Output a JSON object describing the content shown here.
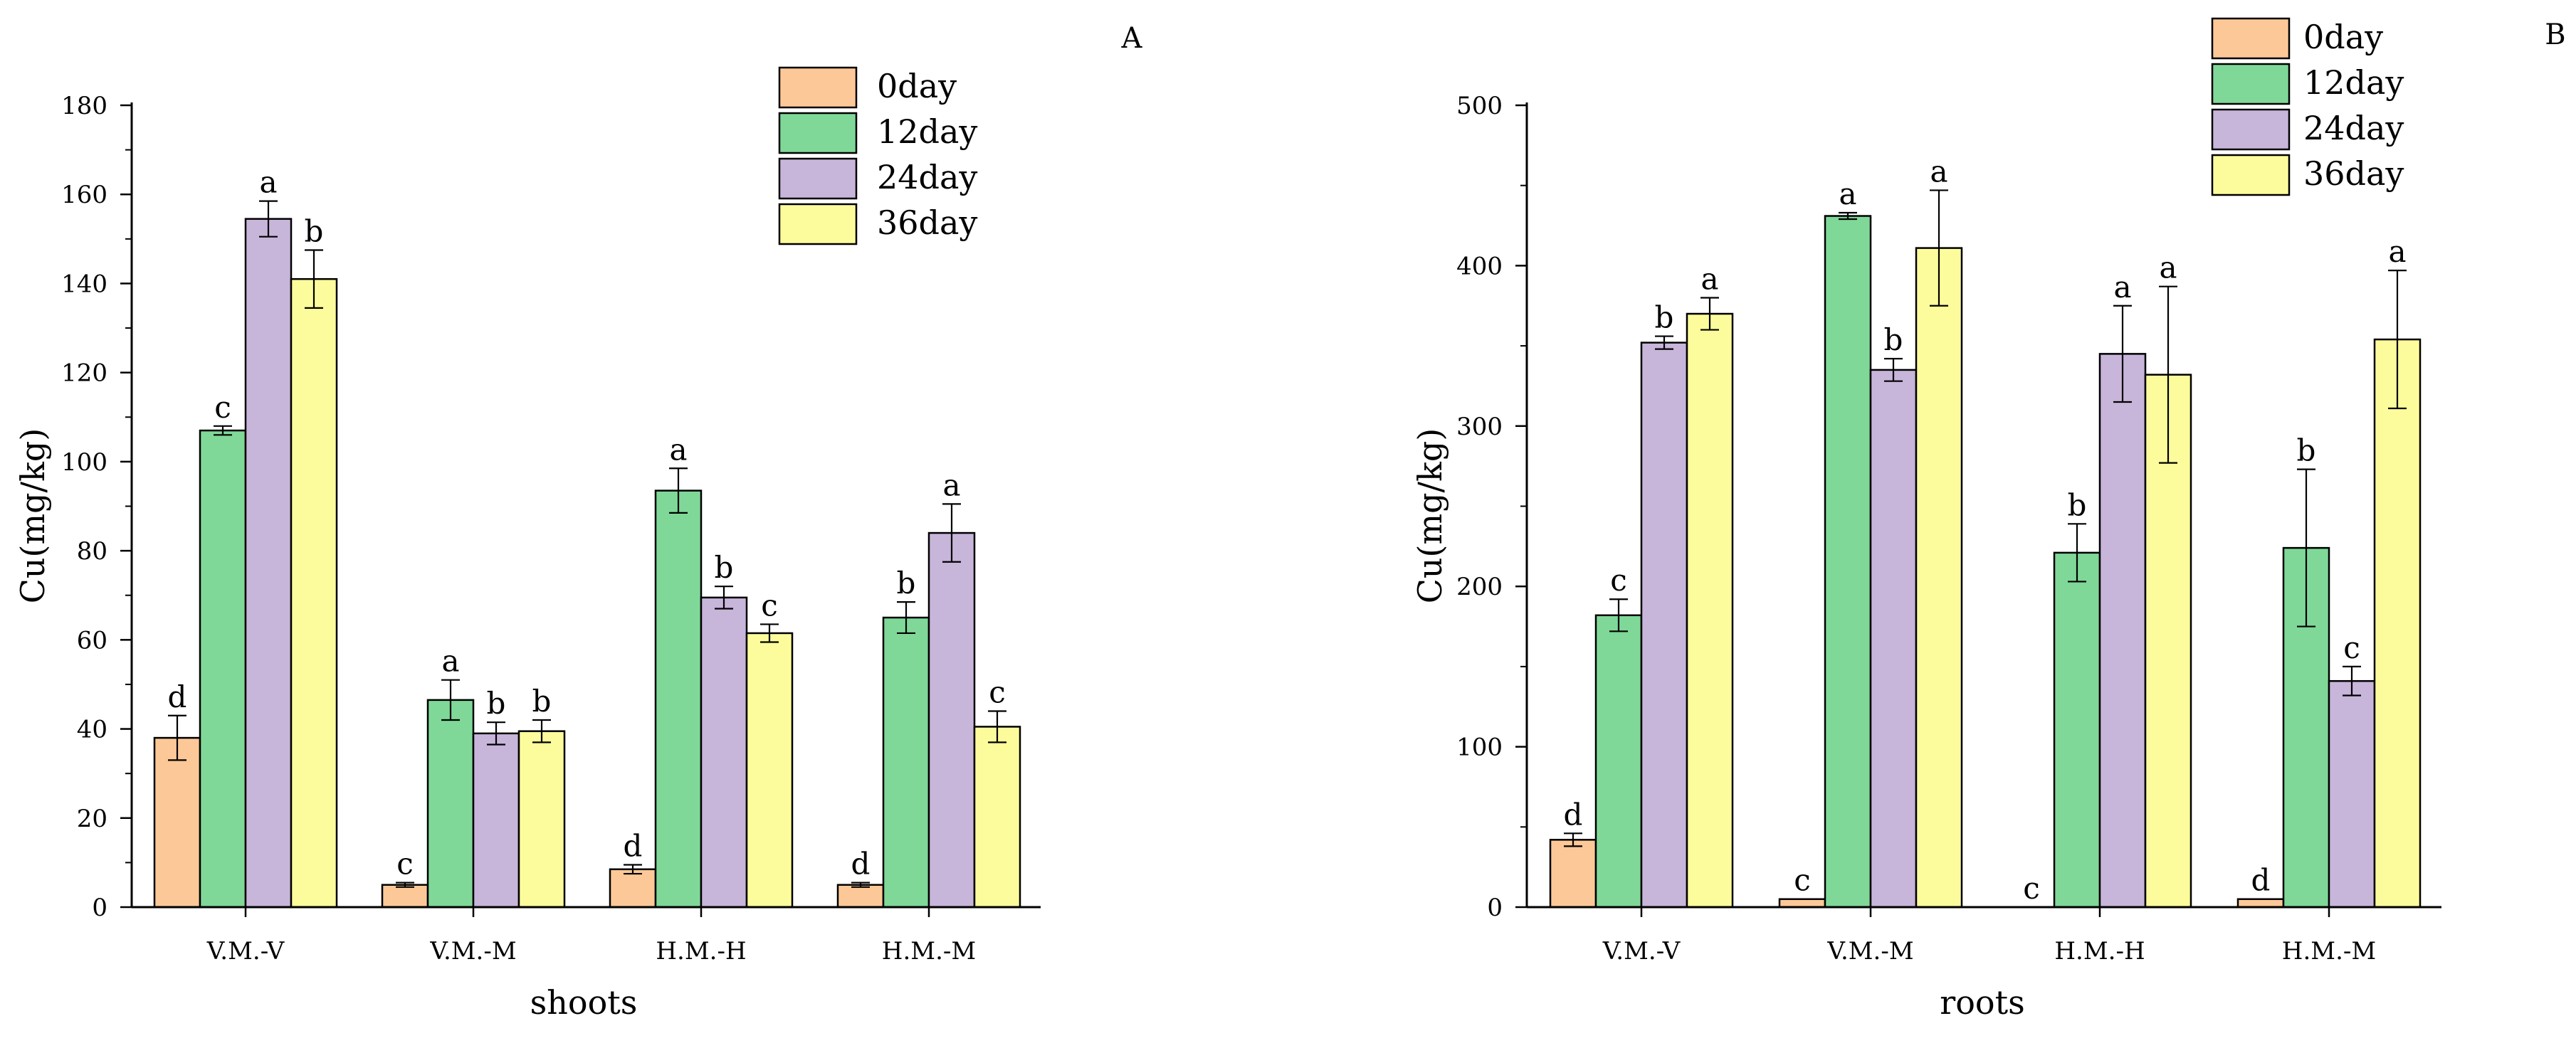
{
  "colors": {
    "0day": "#fdc897",
    "12day": "#7fd898",
    "24day": "#c8b5da",
    "36day": "#fdfc9c",
    "axis": "#000000"
  },
  "chart_data": [
    {
      "panel": "A",
      "type": "bar",
      "title": "",
      "xlabel": "shoots",
      "ylabel": "Cu(mg/kg)",
      "ylim": [
        0,
        180
      ],
      "yticks": [
        0,
        20,
        40,
        60,
        80,
        100,
        120,
        140,
        160,
        180
      ],
      "categories": [
        "V.M.-V",
        "V.M.-M",
        "H.M.-H",
        "H.M.-M"
      ],
      "legend_position": "top-right",
      "series": [
        {
          "name": "0day",
          "values": [
            38,
            5,
            8.5,
            5
          ],
          "errors": [
            5,
            0.5,
            1,
            0.5
          ],
          "letters": [
            "d",
            "c",
            "d",
            "d"
          ]
        },
        {
          "name": "12day",
          "values": [
            107,
            46.5,
            93.5,
            65
          ],
          "errors": [
            1,
            4.5,
            5,
            3.5
          ],
          "letters": [
            "c",
            "a",
            "a",
            "b"
          ]
        },
        {
          "name": "24day",
          "values": [
            154.5,
            39,
            69.5,
            84
          ],
          "errors": [
            4,
            2.5,
            2.5,
            6.5
          ],
          "letters": [
            "a",
            "b",
            "b",
            "a"
          ]
        },
        {
          "name": "36day",
          "values": [
            141,
            39.5,
            61.5,
            40.5
          ],
          "errors": [
            6.5,
            2.5,
            2,
            3.5
          ],
          "letters": [
            "b",
            "b",
            "c",
            "c"
          ]
        }
      ]
    },
    {
      "panel": "B",
      "type": "bar",
      "title": "",
      "xlabel": "roots",
      "ylabel": "Cu(mg/kg)",
      "ylim": [
        0,
        500
      ],
      "yticks": [
        0,
        100,
        200,
        300,
        400,
        500
      ],
      "categories": [
        "V.M.-V",
        "V.M.-M",
        "H.M.-H",
        "H.M.-M"
      ],
      "legend_position": "top-right",
      "series": [
        {
          "name": "0day",
          "values": [
            42,
            5,
            0,
            5
          ],
          "errors": [
            4,
            0,
            0,
            0
          ],
          "letters": [
            "d",
            "c",
            "c",
            "d"
          ]
        },
        {
          "name": "12day",
          "values": [
            182,
            431,
            221,
            224
          ],
          "errors": [
            10,
            2,
            18,
            49
          ],
          "letters": [
            "c",
            "a",
            "b",
            "b"
          ]
        },
        {
          "name": "24day",
          "values": [
            352,
            335,
            345,
            141
          ],
          "errors": [
            4,
            7,
            30,
            9
          ],
          "letters": [
            "b",
            "b",
            "a",
            "c"
          ]
        },
        {
          "name": "36day",
          "values": [
            370,
            411,
            332,
            354
          ],
          "errors": [
            10,
            36,
            55,
            43
          ],
          "letters": [
            "a",
            "a",
            "a",
            "a"
          ]
        }
      ]
    }
  ]
}
